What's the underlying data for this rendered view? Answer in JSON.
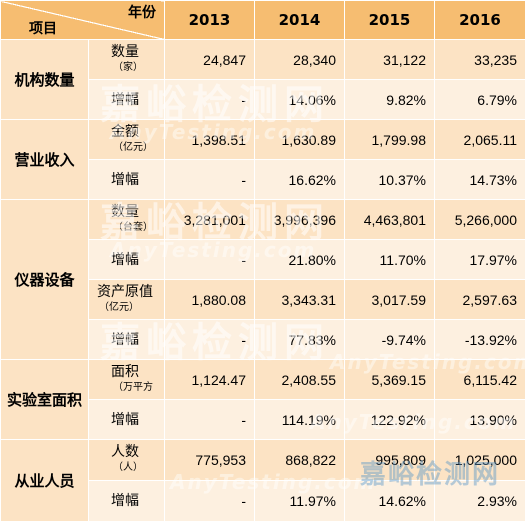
{
  "header": {
    "corner_top": "年份",
    "corner_bottom": "项目",
    "years": [
      "2013",
      "2014",
      "2015",
      "2016"
    ]
  },
  "groups": [
    {
      "category": "机构数量",
      "rows": [
        {
          "label": "数量",
          "unit": "（家）",
          "values": [
            "24,847",
            "28,340",
            "31,122",
            "33,235"
          ]
        },
        {
          "label": "增幅",
          "unit": "",
          "values": [
            "-",
            "14.06%",
            "9.82%",
            "6.79%"
          ]
        }
      ]
    },
    {
      "category": "营业收入",
      "rows": [
        {
          "label": "金额",
          "unit": "（亿元）",
          "values": [
            "1,398.51",
            "1,630.89",
            "1,799.98",
            "2,065.11"
          ]
        },
        {
          "label": "增幅",
          "unit": "",
          "values": [
            "-",
            "16.62%",
            "10.37%",
            "14.73%"
          ]
        }
      ]
    },
    {
      "category": "仪器设备",
      "rows": [
        {
          "label": "数量",
          "unit": "（台套）",
          "values": [
            "3,281,001",
            "3,996,396",
            "4,463,801",
            "5,266,000"
          ]
        },
        {
          "label": "增幅",
          "unit": "",
          "values": [
            "-",
            "21.80%",
            "11.70%",
            "17.97%"
          ]
        },
        {
          "label": "资产原值",
          "unit": "（亿元）",
          "values": [
            "1,880.08",
            "3,343.31",
            "3,017.59",
            "2,597.63"
          ]
        },
        {
          "label": "增幅",
          "unit": "",
          "values": [
            "-",
            "77.83%",
            "-9.74%",
            "-13.92%"
          ]
        }
      ]
    },
    {
      "category": "实验室面积",
      "rows": [
        {
          "label": "面积",
          "unit": "（万平方",
          "values": [
            "1,124.47",
            "2,408.55",
            "5,369.15",
            "6,115.42"
          ]
        },
        {
          "label": "增幅",
          "unit": "",
          "values": [
            "-",
            "114.19%",
            "122.92%",
            "13.90%"
          ]
        }
      ]
    },
    {
      "category": "从业人员",
      "rows": [
        {
          "label": "人数",
          "unit": "（人）",
          "values": [
            "775,953",
            "868,822",
            "995,809",
            "1,025,000"
          ]
        },
        {
          "label": "增幅",
          "unit": "",
          "values": [
            "-",
            "11.97%",
            "14.62%",
            "2.93%"
          ]
        }
      ]
    }
  ],
  "watermark": {
    "cn": "嘉峪检测网",
    "en": "AnyTesting.com"
  }
}
